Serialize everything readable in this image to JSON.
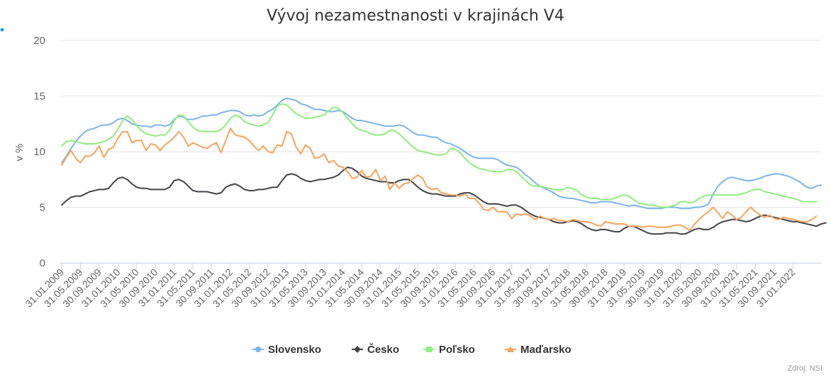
{
  "chart_data": {
    "type": "line",
    "title": "Vývoj nezamestnanosti v krajinách V4",
    "ylabel": "v %",
    "xlabel": "",
    "ylim": [
      0,
      20
    ],
    "yticks": [
      0,
      5,
      10,
      15,
      20
    ],
    "grid": true,
    "legend_position": "bottom",
    "credit": "Zdroj: NSI",
    "x_start": "2009-01",
    "x_tick_labels": [
      "31.01.2009",
      "31.05.2009",
      "30.09.2009",
      "31.01.2010",
      "31.05.2010",
      "30.09.2010",
      "31.01.2011",
      "31.05.2011",
      "30.09.2011",
      "31.01.2012",
      "31.05.2012",
      "30.09.2012",
      "31.01.2013",
      "31.05.2013",
      "30.09.2013",
      "31.01.2014",
      "31.05.2014",
      "30.09.2014",
      "31.01.2015",
      "31.05.2015",
      "30.09.2015",
      "31.01.2016",
      "31.05.2016",
      "30.09.2016",
      "31.01.2017",
      "31.05.2017",
      "30.09.2017",
      "31.01.2018",
      "31.05.2018",
      "30.09.2018",
      "31.01.2019",
      "31.05.2019",
      "30.09.2019",
      "31.01.2020",
      "31.05.2020",
      "30.09.2020",
      "31.01.2021",
      "31.05.2021",
      "30.09.2021",
      "31.01.2022"
    ],
    "series": [
      {
        "name": "Slovensko",
        "color": "#7cb5ec",
        "marker": "circle",
        "values": [
          9.0,
          9.6,
          10.3,
          10.9,
          11.4,
          11.8,
          12.0,
          12.1,
          12.3,
          12.4,
          12.4,
          12.6,
          12.9,
          13.0,
          12.8,
          12.5,
          12.4,
          12.3,
          12.3,
          12.2,
          12.4,
          12.4,
          12.3,
          12.4,
          12.9,
          13.2,
          13.1,
          12.9,
          12.9,
          13.0,
          13.2,
          13.2,
          13.3,
          13.3,
          13.5,
          13.6,
          13.7,
          13.7,
          13.6,
          13.3,
          13.2,
          13.3,
          13.2,
          13.3,
          13.6,
          13.8,
          14.2,
          14.6,
          14.8,
          14.7,
          14.6,
          14.3,
          14.2,
          14.0,
          13.8,
          13.8,
          13.7,
          13.6,
          13.6,
          13.7,
          13.6,
          13.3,
          13.0,
          12.8,
          12.8,
          12.7,
          12.6,
          12.5,
          12.4,
          12.3,
          12.3,
          12.3,
          12.4,
          12.3,
          12.0,
          11.7,
          11.5,
          11.5,
          11.4,
          11.3,
          11.3,
          11.0,
          10.8,
          10.7,
          10.5,
          10.3,
          10.0,
          9.7,
          9.5,
          9.4,
          9.4,
          9.4,
          9.4,
          9.3,
          9.0,
          8.8,
          8.7,
          8.6,
          8.3,
          7.9,
          7.6,
          7.2,
          6.9,
          6.7,
          6.5,
          6.3,
          6.0,
          5.9,
          5.8,
          5.8,
          5.7,
          5.6,
          5.5,
          5.4,
          5.4,
          5.5,
          5.5,
          5.5,
          5.4,
          5.3,
          5.2,
          5.1,
          5.2,
          5.1,
          5.0,
          4.9,
          4.9,
          4.9,
          4.9,
          5.0,
          5.0,
          5.0,
          4.9,
          4.9,
          4.9,
          5.0,
          5.0,
          5.1,
          5.3,
          6.2,
          6.9,
          7.3,
          7.6,
          7.7,
          7.6,
          7.5,
          7.4,
          7.4,
          7.5,
          7.6,
          7.8,
          7.9,
          8.0,
          8.0,
          7.9,
          7.8,
          7.6,
          7.4,
          7.1,
          6.8,
          6.7,
          6.9,
          7.0
        ]
      },
      {
        "name": "Česko",
        "color": "#434348",
        "marker": "diamond",
        "values": [
          5.2,
          5.6,
          5.9,
          6.0,
          6.0,
          6.2,
          6.4,
          6.5,
          6.6,
          6.6,
          6.7,
          7.2,
          7.6,
          7.7,
          7.5,
          7.1,
          6.8,
          6.7,
          6.7,
          6.6,
          6.6,
          6.6,
          6.6,
          6.8,
          7.4,
          7.5,
          7.3,
          6.9,
          6.5,
          6.4,
          6.4,
          6.4,
          6.3,
          6.2,
          6.3,
          6.8,
          7.0,
          7.1,
          6.9,
          6.6,
          6.5,
          6.5,
          6.6,
          6.6,
          6.7,
          6.8,
          6.8,
          7.4,
          7.9,
          8.0,
          7.9,
          7.6,
          7.4,
          7.3,
          7.4,
          7.5,
          7.5,
          7.6,
          7.7,
          7.9,
          8.3,
          8.6,
          8.5,
          8.2,
          7.8,
          7.6,
          7.5,
          7.4,
          7.3,
          7.3,
          7.2,
          7.2,
          7.4,
          7.5,
          7.5,
          7.2,
          6.8,
          6.5,
          6.3,
          6.2,
          6.2,
          6.1,
          6.0,
          6.0,
          6.0,
          6.2,
          6.3,
          6.3,
          6.1,
          5.8,
          5.5,
          5.3,
          5.3,
          5.3,
          5.2,
          5.1,
          5.2,
          5.2,
          5.0,
          4.7,
          4.4,
          4.2,
          4.1,
          4.0,
          3.9,
          3.7,
          3.6,
          3.6,
          3.7,
          3.8,
          3.7,
          3.5,
          3.2,
          3.0,
          2.9,
          3.0,
          3.0,
          2.9,
          2.8,
          2.8,
          3.1,
          3.3,
          3.3,
          3.1,
          2.9,
          2.7,
          2.6,
          2.6,
          2.6,
          2.7,
          2.7,
          2.7,
          2.6,
          2.6,
          2.8,
          3.0,
          3.1,
          3.0,
          3.0,
          3.2,
          3.5,
          3.7,
          3.8,
          3.9,
          3.9,
          3.8,
          3.7,
          3.8,
          4.0,
          4.2,
          4.3,
          4.2,
          4.1,
          4.0,
          3.9,
          3.8,
          3.7,
          3.7,
          3.6,
          3.5,
          3.4,
          3.3,
          3.5,
          3.6
        ]
      },
      {
        "name": "Poľsko",
        "color": "#90ed7d",
        "marker": "square",
        "values": [
          10.5,
          10.9,
          11.0,
          10.9,
          10.8,
          10.7,
          10.7,
          10.7,
          10.8,
          10.9,
          11.1,
          11.4,
          12.0,
          12.8,
          13.2,
          12.9,
          12.3,
          11.9,
          11.6,
          11.5,
          11.4,
          11.5,
          11.5,
          11.9,
          12.8,
          13.3,
          13.2,
          12.7,
          12.2,
          11.9,
          11.8,
          11.8,
          11.8,
          11.8,
          12.0,
          12.4,
          13.0,
          13.3,
          13.1,
          12.7,
          12.5,
          12.4,
          12.3,
          12.4,
          12.6,
          13.3,
          14.1,
          14.3,
          14.2,
          13.8,
          13.4,
          13.2,
          13.0,
          13.0,
          13.1,
          13.2,
          13.3,
          13.7,
          14.0,
          13.9,
          13.5,
          13.0,
          12.5,
          12.1,
          11.9,
          11.8,
          11.6,
          11.5,
          11.5,
          11.6,
          11.9,
          11.9,
          11.6,
          11.2,
          10.8,
          10.4,
          10.1,
          10.0,
          9.9,
          9.8,
          9.7,
          9.7,
          9.8,
          10.3,
          10.2,
          9.9,
          9.4,
          9.0,
          8.7,
          8.5,
          8.4,
          8.3,
          8.2,
          8.2,
          8.2,
          8.4,
          8.4,
          8.2,
          7.8,
          7.4,
          7.0,
          6.9,
          6.9,
          6.8,
          6.7,
          6.6,
          6.6,
          6.6,
          6.8,
          6.7,
          6.5,
          6.1,
          5.9,
          5.8,
          5.8,
          5.7,
          5.7,
          5.7,
          5.8,
          6.0,
          6.1,
          6.0,
          5.7,
          5.4,
          5.3,
          5.2,
          5.2,
          5.1,
          5.0,
          5.0,
          5.1,
          5.2,
          5.5,
          5.5,
          5.4,
          5.5,
          5.8,
          6.0,
          6.1,
          6.1,
          6.1,
          6.1,
          6.1,
          6.1,
          6.1,
          6.2,
          6.3,
          6.5,
          6.6,
          6.6,
          6.4,
          6.3,
          6.2,
          6.1,
          6.0,
          5.9,
          5.8,
          5.7,
          5.5,
          5.5,
          5.5,
          5.5
        ]
      },
      {
        "name": "Maďarsko",
        "color": "#f7a35c",
        "marker": "triangle",
        "values": [
          8.8,
          9.5,
          10.1,
          9.4,
          9.0,
          9.6,
          9.6,
          9.9,
          10.5,
          9.5,
          10.2,
          10.4,
          11.2,
          11.8,
          11.8,
          10.8,
          11.0,
          11.0,
          10.1,
          10.7,
          10.6,
          10.1,
          10.6,
          10.9,
          11.3,
          11.8,
          11.3,
          10.5,
          10.8,
          10.6,
          10.4,
          10.3,
          10.6,
          10.8,
          9.9,
          11.0,
          12.1,
          11.5,
          11.4,
          11.3,
          11.0,
          10.5,
          10.1,
          10.5,
          10.0,
          9.9,
          10.6,
          10.5,
          11.8,
          11.6,
          10.4,
          9.8,
          10.6,
          10.3,
          9.4,
          9.5,
          9.8,
          9.0,
          9.2,
          8.7,
          8.6,
          8.2,
          7.6,
          7.7,
          8.3,
          7.7,
          7.8,
          8.4,
          7.4,
          7.8,
          6.6,
          7.2,
          6.7,
          7.1,
          7.2,
          7.6,
          7.9,
          7.6,
          6.8,
          6.6,
          6.7,
          6.3,
          6.2,
          6.1,
          6.1,
          6.0,
          6.2,
          5.8,
          5.8,
          5.4,
          4.8,
          4.7,
          5.0,
          4.6,
          4.6,
          4.6,
          4.0,
          4.4,
          4.3,
          4.4,
          4.2,
          3.9,
          4.2,
          4.0,
          3.9,
          4.0,
          3.8,
          3.8,
          3.7,
          3.9,
          3.8,
          3.7,
          3.7,
          3.6,
          3.4,
          3.3,
          3.7,
          3.6,
          3.5,
          3.5,
          3.5,
          3.3,
          3.3,
          3.3,
          3.2,
          3.3,
          3.3,
          3.2,
          3.2,
          3.2,
          3.3,
          3.4,
          3.4,
          3.2,
          2.9,
          3.5,
          3.9,
          4.3,
          4.6,
          5.0,
          4.5,
          4.0,
          4.6,
          4.3,
          3.9,
          4.1,
          4.6,
          5.0,
          4.6,
          4.3,
          4.1,
          4.3,
          4.0,
          3.9,
          4.1,
          4.0,
          3.9,
          3.8,
          3.7,
          3.7,
          3.9,
          4.2
        ]
      }
    ]
  }
}
